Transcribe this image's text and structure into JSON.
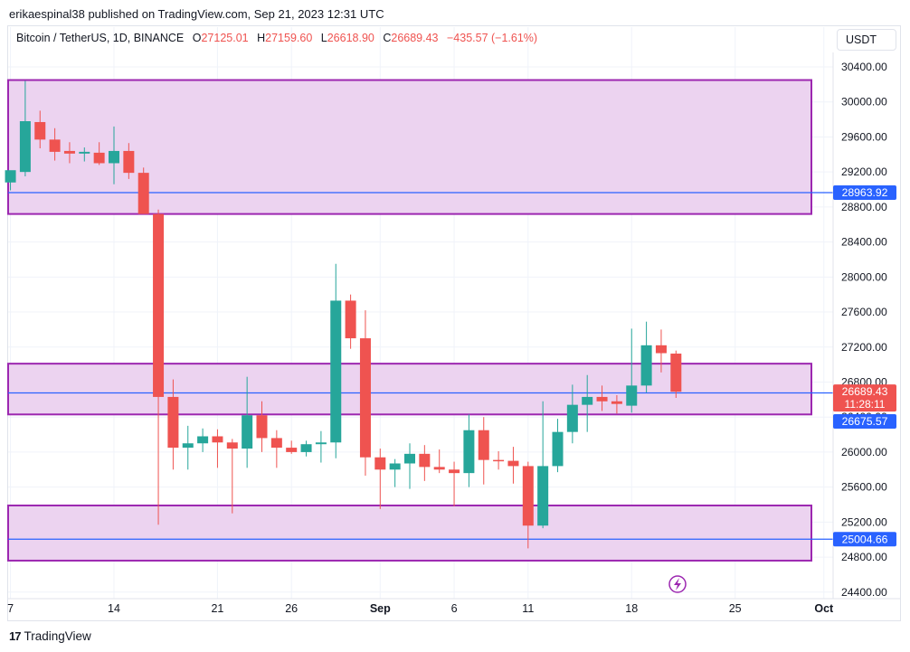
{
  "header": {
    "published": "erikaespinal38 published on TradingView.com, Sep 21, 2023 12:31 UTC"
  },
  "legend": {
    "symbol": "Bitcoin / TetherUS, 1D, BINANCE",
    "o_label": "O",
    "o_value": "27125.01",
    "h_label": "H",
    "h_value": "27159.60",
    "l_label": "L",
    "l_value": "26618.90",
    "c_label": "C",
    "c_value": "26689.43",
    "change": "−435.57 (−1.61%)"
  },
  "currency_button": "USDT",
  "footer": {
    "logo": "17",
    "brand": "TradingView"
  },
  "colors": {
    "up": "#26a69a",
    "down": "#ef5350",
    "zone_fill": "#ecd3f0",
    "zone_border": "#9c27b0",
    "hline": "#2962ff",
    "grid": "#f0f3fa"
  },
  "chart_data": {
    "type": "candlestick",
    "price_axis": {
      "ticks": [
        "30400.00",
        "30000.00",
        "29600.00",
        "29200.00",
        "28800.00",
        "28400.00",
        "28000.00",
        "27600.00",
        "27200.00",
        "26800.00",
        "26400.00",
        "26000.00",
        "25600.00",
        "25200.00",
        "24800.00",
        "24400.00"
      ],
      "tick_values": [
        30400,
        30000,
        29600,
        29200,
        28800,
        28400,
        28000,
        27600,
        27200,
        26800,
        26400,
        26000,
        25600,
        25200,
        24800,
        24400
      ]
    },
    "time_axis": {
      "labels": [
        "7",
        "14",
        "21",
        "26",
        "Sep",
        "6",
        "11",
        "18",
        "25",
        "Oct"
      ],
      "label_days": [
        -1,
        6,
        13,
        18,
        24,
        29,
        34,
        41,
        48,
        54
      ]
    },
    "candles": [
      {
        "day": -1,
        "o": 29080,
        "h": 29180,
        "l": 28990,
        "c": 29220
      },
      {
        "day": 0,
        "o": 29200,
        "h": 30240,
        "l": 29150,
        "c": 29780
      },
      {
        "day": 1,
        "o": 29770,
        "h": 29900,
        "l": 29470,
        "c": 29570
      },
      {
        "day": 2,
        "o": 29570,
        "h": 29700,
        "l": 29330,
        "c": 29430
      },
      {
        "day": 3,
        "o": 29440,
        "h": 29540,
        "l": 29300,
        "c": 29410
      },
      {
        "day": 4,
        "o": 29410,
        "h": 29480,
        "l": 29320,
        "c": 29430
      },
      {
        "day": 5,
        "o": 29420,
        "h": 29540,
        "l": 29280,
        "c": 29300
      },
      {
        "day": 6,
        "o": 29300,
        "h": 29720,
        "l": 29060,
        "c": 29440
      },
      {
        "day": 7,
        "o": 29440,
        "h": 29530,
        "l": 29120,
        "c": 29190
      },
      {
        "day": 8,
        "o": 29190,
        "h": 29250,
        "l": 28720,
        "c": 28720
      },
      {
        "day": 9,
        "o": 28720,
        "h": 28770,
        "l": 25170,
        "c": 26630
      },
      {
        "day": 10,
        "o": 26630,
        "h": 26830,
        "l": 25800,
        "c": 26050
      },
      {
        "day": 11,
        "o": 26050,
        "h": 26300,
        "l": 25800,
        "c": 26100
      },
      {
        "day": 12,
        "o": 26100,
        "h": 26270,
        "l": 26000,
        "c": 26180
      },
      {
        "day": 13,
        "o": 26180,
        "h": 26260,
        "l": 25820,
        "c": 26110
      },
      {
        "day": 14,
        "o": 26110,
        "h": 26150,
        "l": 25300,
        "c": 26040
      },
      {
        "day": 15,
        "o": 26040,
        "h": 26860,
        "l": 25820,
        "c": 26420
      },
      {
        "day": 16,
        "o": 26420,
        "h": 26580,
        "l": 26000,
        "c": 26160
      },
      {
        "day": 17,
        "o": 26160,
        "h": 26250,
        "l": 25820,
        "c": 26050
      },
      {
        "day": 18,
        "o": 26050,
        "h": 26130,
        "l": 25980,
        "c": 26000
      },
      {
        "day": 19,
        "o": 26000,
        "h": 26130,
        "l": 25950,
        "c": 26090
      },
      {
        "day": 20,
        "o": 26090,
        "h": 26240,
        "l": 25880,
        "c": 26110
      },
      {
        "day": 21,
        "o": 26110,
        "h": 28150,
        "l": 25930,
        "c": 27730
      },
      {
        "day": 22,
        "o": 27730,
        "h": 27800,
        "l": 27180,
        "c": 27300
      },
      {
        "day": 23,
        "o": 27300,
        "h": 27620,
        "l": 25730,
        "c": 25940
      },
      {
        "day": 24,
        "o": 25940,
        "h": 26040,
        "l": 25350,
        "c": 25800
      },
      {
        "day": 25,
        "o": 25800,
        "h": 25920,
        "l": 25600,
        "c": 25870
      },
      {
        "day": 26,
        "o": 25870,
        "h": 26100,
        "l": 25580,
        "c": 25980
      },
      {
        "day": 27,
        "o": 25980,
        "h": 26080,
        "l": 25670,
        "c": 25830
      },
      {
        "day": 28,
        "o": 25830,
        "h": 26030,
        "l": 25760,
        "c": 25800
      },
      {
        "day": 29,
        "o": 25800,
        "h": 25890,
        "l": 25380,
        "c": 25760
      },
      {
        "day": 30,
        "o": 25760,
        "h": 26430,
        "l": 25600,
        "c": 26250
      },
      {
        "day": 31,
        "o": 26250,
        "h": 26400,
        "l": 25630,
        "c": 25910
      },
      {
        "day": 32,
        "o": 25910,
        "h": 26010,
        "l": 25800,
        "c": 25900
      },
      {
        "day": 33,
        "o": 25900,
        "h": 26060,
        "l": 25640,
        "c": 25840
      },
      {
        "day": 34,
        "o": 25840,
        "h": 25890,
        "l": 24900,
        "c": 25160
      },
      {
        "day": 35,
        "o": 25160,
        "h": 26580,
        "l": 25130,
        "c": 25840
      },
      {
        "day": 36,
        "o": 25840,
        "h": 26380,
        "l": 25770,
        "c": 26230
      },
      {
        "day": 37,
        "o": 26230,
        "h": 26770,
        "l": 26100,
        "c": 26540
      },
      {
        "day": 38,
        "o": 26540,
        "h": 26880,
        "l": 26230,
        "c": 26630
      },
      {
        "day": 39,
        "o": 26630,
        "h": 26760,
        "l": 26470,
        "c": 26580
      },
      {
        "day": 40,
        "o": 26580,
        "h": 26650,
        "l": 26440,
        "c": 26550
      },
      {
        "day": 41,
        "o": 26530,
        "h": 27410,
        "l": 26450,
        "c": 26760
      },
      {
        "day": 42,
        "o": 26760,
        "h": 27490,
        "l": 26680,
        "c": 27220
      },
      {
        "day": 43,
        "o": 27220,
        "h": 27400,
        "l": 26910,
        "c": 27130
      },
      {
        "day": 44,
        "o": 27125.01,
        "h": 27159.6,
        "l": 26618.9,
        "c": 26689.43
      }
    ],
    "zones": [
      {
        "top": 30250,
        "bottom": 28720
      },
      {
        "top": 27010,
        "bottom": 26430
      },
      {
        "top": 25390,
        "bottom": 24760
      }
    ],
    "horizontal_lines": [
      28963.92,
      26675.57,
      25004.66
    ],
    "price_labels": [
      {
        "price": 28963.92,
        "text": "28963.92",
        "color": "#2962ff"
      },
      {
        "price": 26689.43,
        "text": "26689.43",
        "color": "#ef5350",
        "sub": "11:28:11"
      },
      {
        "price": 26675.57,
        "text": "26675.57",
        "color": "#2962ff"
      },
      {
        "price": 25004.66,
        "text": "25004.66",
        "color": "#2962ff"
      }
    ],
    "current_price": 26689.43,
    "countdown": "11:28:11"
  }
}
